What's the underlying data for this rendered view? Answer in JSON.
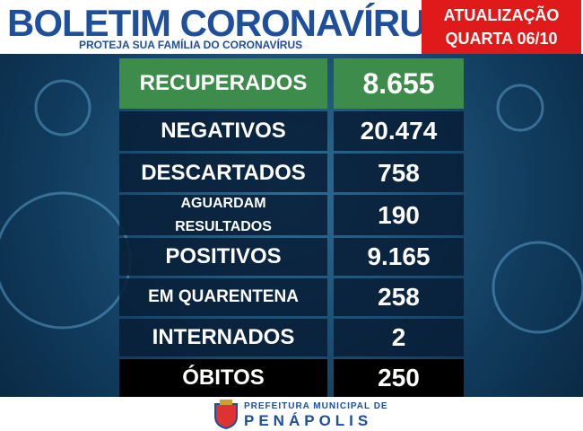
{
  "header": {
    "title": "BOLETIM CORONAVÍRUS",
    "subtitle": "PROTEJA SUA FAMÍLIA DO CORONAVÍRUS"
  },
  "update": {
    "line1": "ATUALIZAÇÃO",
    "line2": "QUARTA 06/10"
  },
  "rows": [
    {
      "label": "RECUPERADOS",
      "value": "8.655"
    },
    {
      "label": "NEGATIVOS",
      "value": "20.474"
    },
    {
      "label": "DESCARTADOS",
      "value": "758"
    },
    {
      "label": "AGUARDAM RESULTADOS",
      "value": "190"
    },
    {
      "label": "POSITIVOS",
      "value": "9.165"
    },
    {
      "label": "EM QUARENTENA",
      "value": "258"
    },
    {
      "label": "INTERNADOS",
      "value": "2"
    },
    {
      "label": "ÓBITOS",
      "value": "250"
    }
  ],
  "footer": {
    "line1": "PREFEITURA MUNICIPAL DE",
    "line2": "PENÁPOLIS"
  }
}
